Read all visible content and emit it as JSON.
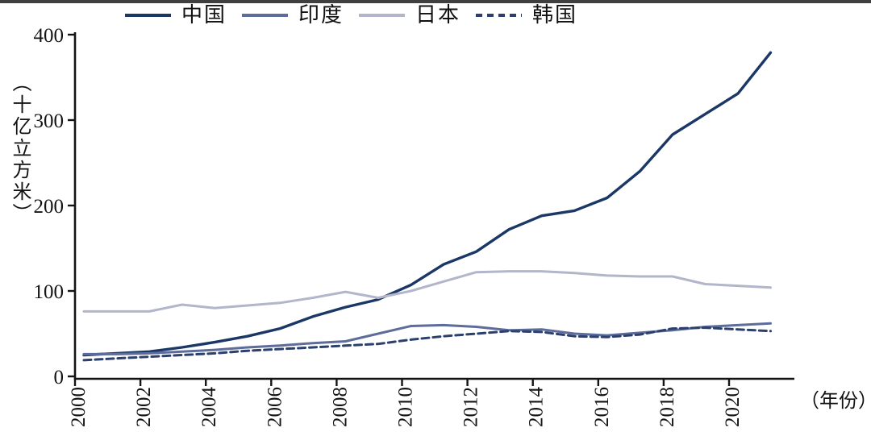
{
  "page": {
    "top_bar_color": "#3f3f3f",
    "background": "#ffffff"
  },
  "chart_data": {
    "type": "line",
    "title": "",
    "ylabel": "（十亿立方米）",
    "xlabel": "（年份）",
    "ylim": [
      0,
      400
    ],
    "xlim": [
      2000,
      2022
    ],
    "grid": false,
    "legend_position": "top",
    "axis_color": "#141414",
    "y_ticks": [
      0,
      100,
      200,
      300,
      400
    ],
    "x_ticks": [
      2000,
      2002,
      2004,
      2006,
      2008,
      2010,
      2012,
      2014,
      2016,
      2018,
      2020
    ],
    "x": [
      2000,
      2001,
      2002,
      2003,
      2004,
      2005,
      2006,
      2007,
      2008,
      2009,
      2010,
      2011,
      2012,
      2013,
      2014,
      2015,
      2016,
      2017,
      2018,
      2019,
      2020,
      2021
    ],
    "series": [
      {
        "id": "china",
        "name": "中国",
        "color": "#1b3766",
        "style": "solid",
        "values": [
          25,
          27,
          29,
          34,
          40,
          47,
          56,
          70,
          81,
          90,
          107,
          131,
          146,
          172,
          188,
          194,
          209,
          240,
          283,
          307,
          331,
          379
        ]
      },
      {
        "id": "india",
        "name": "印度",
        "color": "#5e6c9b",
        "style": "solid",
        "values": [
          26,
          26,
          27,
          29,
          31,
          34,
          36,
          39,
          41,
          50,
          59,
          60,
          58,
          54,
          55,
          50,
          48,
          51,
          54,
          58,
          60,
          62
        ]
      },
      {
        "id": "japan",
        "name": "日本",
        "color": "#b1b6ca",
        "style": "solid",
        "values": [
          76,
          76,
          76,
          84,
          80,
          83,
          86,
          92,
          99,
          92,
          100,
          111,
          122,
          123,
          123,
          121,
          118,
          117,
          117,
          108,
          106,
          104
        ]
      },
      {
        "id": "korea",
        "name": "韩国",
        "color": "#2c406e",
        "style": "dashed",
        "values": [
          19,
          21,
          23,
          25,
          27,
          30,
          32,
          34,
          36,
          38,
          43,
          47,
          50,
          53,
          52,
          47,
          46,
          49,
          56,
          57,
          55,
          53
        ]
      }
    ]
  }
}
